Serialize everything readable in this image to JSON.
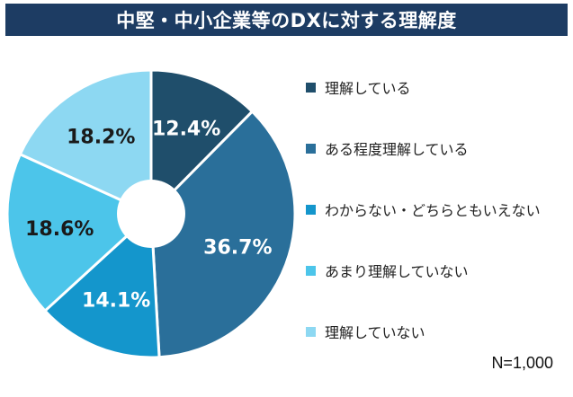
{
  "header": {
    "title": "中堅・中小企業等のDXに対する理解度"
  },
  "chart_data": {
    "type": "pie",
    "donut": true,
    "title": "中堅・中小企業等のDXに対する理解度",
    "series": [
      {
        "name": "理解している",
        "value": 12.4,
        "label": "12.4%",
        "color": "#1f4e6b"
      },
      {
        "name": "ある程度理解している",
        "value": 36.7,
        "label": "36.7%",
        "color": "#2a6f9a"
      },
      {
        "name": "わからない・どちらともいえない",
        "value": 14.1,
        "label": "14.1%",
        "color": "#1496cc"
      },
      {
        "name": "あまり理解していない",
        "value": 18.6,
        "label": "18.6%",
        "color": "#4cc5ea"
      },
      {
        "name": "理解していない",
        "value": 18.2,
        "label": "18.2%",
        "color": "#8dd8f2"
      }
    ],
    "legend_position": "right",
    "note": "N=1,000"
  }
}
